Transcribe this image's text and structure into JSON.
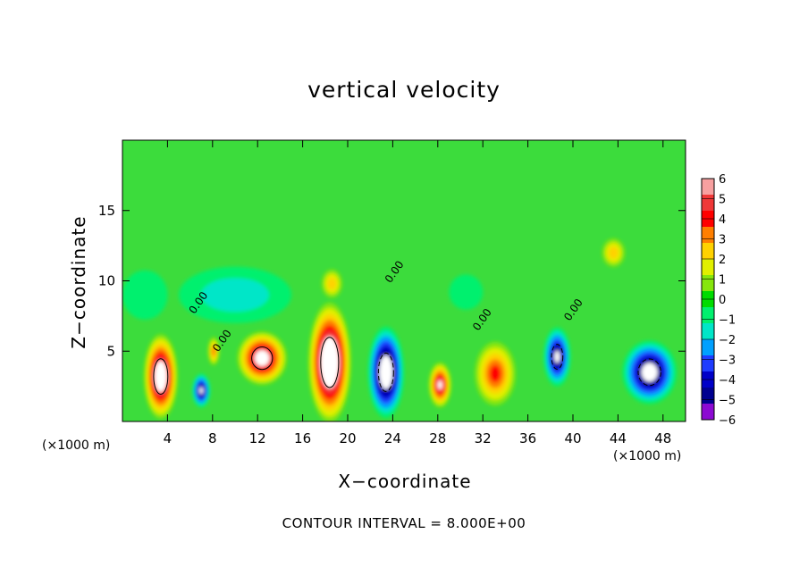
{
  "chart_data": {
    "type": "heatmap",
    "title": "vertical velocity",
    "xlabel": "X−coordinate",
    "ylabel": "Z−coordinate",
    "x_unit_label": "(×1000 m)",
    "x_ticks": [
      4,
      8,
      12,
      16,
      20,
      24,
      28,
      32,
      36,
      40,
      44,
      48
    ],
    "y_ticks": [
      5,
      10,
      15
    ],
    "xlim": [
      0,
      50
    ],
    "ylim": [
      0,
      20
    ],
    "contour_note": "CONTOUR INTERVAL = 8.000E+00",
    "contour_labels": [
      {
        "x": 7.0,
        "z": 8.3,
        "text": "0.00"
      },
      {
        "x": 9.1,
        "z": 5.6,
        "text": "0.00"
      },
      {
        "x": 24.4,
        "z": 10.5,
        "text": "0.00"
      },
      {
        "x": 32.2,
        "z": 7.1,
        "text": "0.00"
      },
      {
        "x": 40.3,
        "z": 7.8,
        "text": "0.00"
      }
    ],
    "colorbar": {
      "ticks": [
        "6",
        "5",
        "4",
        "3",
        "2",
        "1",
        "0",
        "−1",
        "−2",
        "−3",
        "−4",
        "−5",
        "−6"
      ],
      "colors": [
        "#f7a0a0",
        "#f03838",
        "#ff0000",
        "#ff7f00",
        "#ffd200",
        "#e1f000",
        "#86e60c",
        "#00dc00",
        "#00f06e",
        "#00e6c8",
        "#00a0ff",
        "#1e3cff",
        "#0000c8",
        "#000090",
        "#8c0ad2",
        "#c8c8ff"
      ],
      "range": [
        -6,
        6
      ]
    },
    "features": [
      {
        "x": 3.4,
        "z": 3.2,
        "w": 3.0,
        "h": 6.0,
        "value": 9.0
      },
      {
        "x": 7.0,
        "z": 2.2,
        "w": 1.6,
        "h": 2.4,
        "value": -6.5
      },
      {
        "x": 8.1,
        "z": 5.0,
        "w": 1.0,
        "h": 2.0,
        "value": 4.0
      },
      {
        "x": 12.4,
        "z": 4.5,
        "w": 4.4,
        "h": 3.8,
        "value": 7.5
      },
      {
        "x": 18.4,
        "z": 4.2,
        "w": 3.8,
        "h": 8.5,
        "value": 10.0
      },
      {
        "x": 23.4,
        "z": 3.5,
        "w": 3.2,
        "h": 6.5,
        "value": -8.5
      },
      {
        "x": 28.2,
        "z": 2.6,
        "w": 2.0,
        "h": 3.2,
        "value": 6.5
      },
      {
        "x": 33.1,
        "z": 3.4,
        "w": 3.6,
        "h": 4.5,
        "value": 4.5
      },
      {
        "x": 38.6,
        "z": 4.6,
        "w": 2.4,
        "h": 4.2,
        "value": -7.0
      },
      {
        "x": 46.8,
        "z": 3.5,
        "w": 4.8,
        "h": 4.5,
        "value": -8.0
      },
      {
        "x": 43.6,
        "z": 12.0,
        "w": 2.0,
        "h": 2.0,
        "value": 2.5
      },
      {
        "x": 18.6,
        "z": 9.8,
        "w": 1.8,
        "h": 2.0,
        "value": 2.5
      },
      {
        "x": 10.0,
        "z": 9.0,
        "w": 10.0,
        "h": 4.0,
        "value": -1.5
      },
      {
        "x": 2.0,
        "z": 9.0,
        "w": 4.0,
        "h": 3.5,
        "value": -1.3
      },
      {
        "x": 30.5,
        "z": 9.2,
        "w": 3.0,
        "h": 2.5,
        "value": -1.2
      }
    ]
  }
}
